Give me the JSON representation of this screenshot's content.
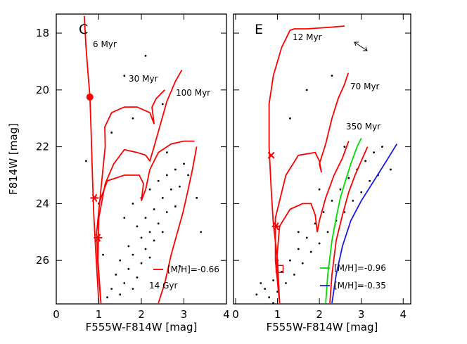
{
  "chart_data": [
    {
      "type": "scatter",
      "panel_label": "C",
      "xlabel": "F555W-F814W [mag]",
      "ylabel": "F814W [mag]",
      "xlim": [
        0,
        4
      ],
      "ylim": [
        27.53,
        17.33
      ],
      "xticks": [
        0,
        1,
        2,
        3,
        4
      ],
      "yticks": [
        18,
        20,
        22,
        24,
        26
      ],
      "show_ytick_labels": true,
      "points": {
        "color": "#000000",
        "x": [
          1.6,
          1.8,
          2.0,
          2.2,
          2.4,
          2.6,
          2.8,
          3.0,
          1.9,
          2.1,
          2.3,
          2.5,
          2.7,
          2.9,
          1.7,
          2.0,
          2.2,
          2.4,
          2.6,
          2.8,
          1.5,
          1.8,
          2.1,
          2.3,
          2.5,
          1.4,
          1.7,
          2.0,
          2.2,
          1.3,
          1.6,
          1.9,
          1.2,
          1.5,
          1.8,
          2.6,
          3.1,
          3.3,
          1.0,
          0.7,
          1.3,
          1.8,
          2.5,
          1.6,
          2.1,
          3.4,
          1.1,
          2.9
        ],
        "y": [
          24.5,
          24.0,
          23.8,
          23.5,
          23.2,
          23.0,
          22.8,
          22.6,
          24.8,
          24.5,
          24.2,
          23.8,
          23.5,
          23.4,
          25.5,
          25.2,
          25.0,
          24.7,
          24.3,
          24.1,
          26.0,
          25.8,
          25.6,
          25.3,
          25.0,
          26.5,
          26.3,
          26.1,
          25.9,
          27.0,
          26.8,
          26.6,
          27.3,
          27.2,
          27.0,
          22.2,
          23.0,
          23.8,
          24.0,
          22.5,
          21.5,
          21.0,
          20.5,
          19.5,
          18.8,
          25.0,
          25.8,
          26.2
        ]
      },
      "series": [
        {
          "name": "6 Myr",
          "color": "#ff0000",
          "x": [
            0.66,
            0.7,
            0.75,
            0.79,
            0.82,
            0.85,
            0.88,
            0.92,
            0.96,
            1.0
          ],
          "y": [
            17.4,
            18.5,
            19.5,
            20.2,
            21.5,
            23,
            24.3,
            25.5,
            26.5,
            27.5
          ]
        },
        {
          "name": "30 Myr",
          "color": "#ff0000",
          "x": [
            1.05,
            0.97,
            0.95,
            1.05,
            1.15,
            1.14,
            1.3,
            1.6,
            1.9,
            2.2,
            2.3,
            2.25,
            2.35,
            2.55
          ],
          "y": [
            27.5,
            26,
            25,
            23.5,
            22,
            21.3,
            20.8,
            20.6,
            20.6,
            20.8,
            21.2,
            20.6,
            20.3,
            20.0
          ]
        },
        {
          "name": "100 Myr",
          "color": "#ff0000",
          "x": [
            1.05,
            0.98,
            1.0,
            1.15,
            1.35,
            1.6,
            1.9,
            2.1,
            2.2,
            2.3,
            2.45,
            2.6,
            2.8,
            2.95
          ],
          "y": [
            27.5,
            26,
            24.5,
            23.3,
            22.6,
            22.1,
            22.2,
            22.3,
            22.5,
            22.0,
            21.2,
            20.4,
            19.7,
            19.3
          ]
        },
        {
          "color": "#ff0000",
          "x": [
            1.0,
            1.2,
            1.6,
            1.95,
            2.05,
            2.0,
            2.1,
            2.2,
            2.4,
            2.7,
            3.0,
            3.25
          ],
          "y": [
            24.0,
            23.2,
            23.0,
            23.0,
            23.3,
            23.9,
            23.5,
            22.8,
            22.2,
            21.9,
            21.8,
            21.8
          ]
        },
        {
          "name": "14 Gyr",
          "color": "#ff0000",
          "x": [
            2.4,
            2.55,
            2.7,
            2.85,
            2.98,
            3.1,
            3.2,
            3.3
          ],
          "y": [
            27.5,
            26.8,
            25.8,
            25,
            24.3,
            23.5,
            22.8,
            22.0
          ]
        }
      ],
      "markers": {
        "color": "#ff0000",
        "symbols": [
          "circle",
          "star",
          "star"
        ],
        "x": [
          0.79,
          0.9,
          0.98
        ],
        "y": [
          20.25,
          23.8,
          25.2
        ]
      },
      "legend": [
        {
          "label": "[M/H]=-0.66",
          "color": "#ff0000"
        }
      ]
    },
    {
      "type": "scatter",
      "panel_label": "E",
      "xlabel": "F555W-F814W [mag]",
      "xlim": [
        -0.05,
        4.18
      ],
      "ylim": [
        27.53,
        17.33
      ],
      "xticks": [
        0,
        1,
        2,
        3,
        4
      ],
      "yticks": [
        18,
        20,
        22,
        24,
        26
      ],
      "show_ytick_labels": false,
      "points": {
        "color": "#000000",
        "x": [
          0.5,
          0.7,
          0.9,
          1.1,
          1.3,
          1.5,
          1.7,
          1.9,
          2.1,
          2.3,
          2.5,
          2.7,
          2.9,
          3.1,
          3.3,
          3.5,
          0.8,
          1.0,
          1.2,
          1.4,
          1.6,
          1.8,
          2.0,
          2.2,
          2.4,
          2.6,
          2.8,
          3.0,
          3.2,
          0.6,
          1.0,
          1.5,
          2.0,
          2.6,
          3.4,
          1.3,
          1.7,
          2.3,
          0.9,
          3.7
        ],
        "y": [
          27.2,
          27.0,
          26.7,
          26.4,
          26.0,
          25.6,
          25.2,
          24.7,
          24.3,
          23.9,
          23.5,
          23.1,
          22.8,
          22.5,
          22.2,
          22.0,
          27.3,
          27.1,
          26.8,
          26.5,
          26.1,
          25.7,
          25.4,
          25.0,
          24.6,
          24.3,
          23.9,
          23.6,
          23.2,
          26.8,
          26.0,
          25.0,
          23.5,
          22.0,
          23.0,
          21.0,
          20.0,
          19.5,
          27.5,
          22.8
        ]
      },
      "series": [
        {
          "name": "12 Myr",
          "color": "#ff0000",
          "x": [
            2.6,
            2.2,
            1.7,
            1.4,
            1.3,
            1.1,
            0.9,
            0.8,
            0.8,
            0.85,
            0.9,
            1.0,
            1.05
          ],
          "y": [
            17.75,
            17.8,
            17.85,
            17.85,
            17.9,
            18.5,
            19.5,
            20.5,
            22,
            23.5,
            24.7,
            26,
            27.5
          ]
        },
        {
          "name": "70 Myr",
          "color": "#ff0000",
          "x": [
            1.05,
            0.95,
            0.95,
            1.2,
            1.5,
            1.9,
            2.0,
            2.05,
            2.0,
            2.15,
            2.3,
            2.45,
            2.6,
            2.69
          ],
          "y": [
            27.5,
            26,
            24.5,
            23,
            22.3,
            22.2,
            22.5,
            22.9,
            22.6,
            21.9,
            21.0,
            20.3,
            19.8,
            19.4
          ]
        },
        {
          "name": "350 Myr",
          "color": "#ff0000",
          "x": [
            1.05,
            0.98,
            1.05,
            1.3,
            1.6,
            1.8,
            1.9,
            1.95,
            2.0,
            2.15,
            2.35,
            2.55,
            2.7
          ],
          "y": [
            27.5,
            26,
            24.8,
            24.2,
            24.0,
            24.0,
            24.4,
            25.0,
            24.6,
            23.8,
            23.0,
            22.4,
            21.8
          ]
        },
        {
          "color": "#ff0000",
          "x": [
            2.25,
            2.3,
            2.4,
            2.55,
            2.7,
            2.85,
            3.0,
            3.15
          ],
          "y": [
            27.5,
            26.5,
            25.3,
            24.4,
            23.6,
            23.0,
            22.5,
            22.0
          ]
        },
        {
          "color": "#00dd00",
          "x": [
            2.15,
            2.2,
            2.3,
            2.4,
            2.5,
            2.6,
            2.75,
            2.9,
            3.0
          ],
          "y": [
            27.5,
            26.5,
            25.3,
            24.5,
            23.8,
            23.3,
            22.6,
            22.0,
            21.7
          ]
        },
        {
          "color": "#1a1ae6",
          "x": [
            2.3,
            2.4,
            2.55,
            2.75,
            3.0,
            3.3,
            3.6,
            3.85
          ],
          "y": [
            27.5,
            26.5,
            25.5,
            24.6,
            23.9,
            23.2,
            22.5,
            21.9
          ]
        }
      ],
      "markers": {
        "color": "#ff0000",
        "symbols": [
          "cross",
          "star",
          "square"
        ],
        "x": [
          0.85,
          0.97,
          1.05
        ],
        "y": [
          22.3,
          24.8,
          26.3
        ]
      },
      "legend": [
        {
          "label": "[M/H]=-0.96",
          "color": "#00dd00"
        },
        {
          "label": "[M/H]=-0.35",
          "color": "#1a1ae6"
        }
      ]
    }
  ]
}
